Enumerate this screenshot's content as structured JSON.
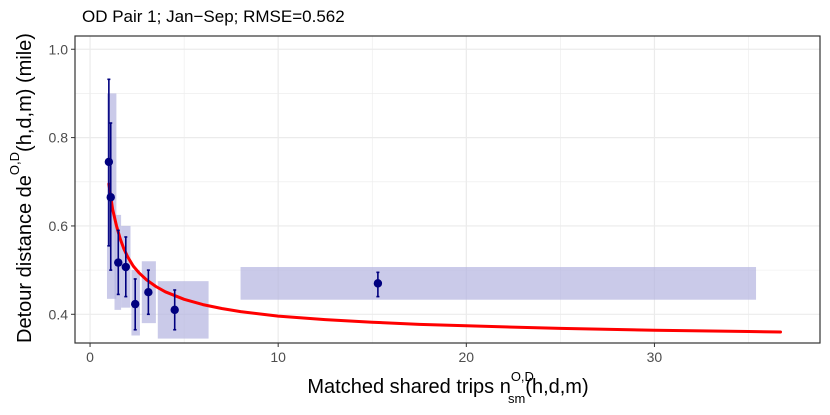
{
  "chart_data": {
    "type": "scatter",
    "title": "OD Pair 1; Jan−Sep; RMSE=0.562",
    "xlabel": {
      "text": "Matched shared trips n",
      "sub": "sm",
      "sup": "O,D",
      "suffix": "(h,d,m)"
    },
    "ylabel": {
      "text": "Detour distance de",
      "sup": "O,D",
      "suffix": "(h,d,m) (mile)"
    },
    "xlim": [
      -0.8,
      38.8
    ],
    "ylim": [
      0.335,
      1.03
    ],
    "x_ticks": [
      0,
      10,
      20,
      30
    ],
    "y_ticks": [
      0.4,
      0.6,
      0.8,
      1.0
    ],
    "x_tick_labels": [
      "0",
      "10",
      "20",
      "30"
    ],
    "y_tick_labels": [
      "0.4",
      "0.6",
      "0.8",
      "1.0"
    ],
    "grid": true,
    "colors": {
      "points": "#00007f",
      "boxes": "#b3b3e0",
      "fit": "#ff0000",
      "grid": "#ebebeb",
      "panel_border": "#333333"
    },
    "points": [
      {
        "x": 1.0,
        "y": 0.745,
        "ylo": 0.555,
        "yhi": 0.932
      },
      {
        "x": 1.1,
        "y": 0.665,
        "ylo": 0.5,
        "yhi": 0.833
      },
      {
        "x": 1.5,
        "y": 0.517,
        "ylo": 0.445,
        "yhi": 0.59
      },
      {
        "x": 1.9,
        "y": 0.507,
        "ylo": 0.44,
        "yhi": 0.575
      },
      {
        "x": 2.4,
        "y": 0.423,
        "ylo": 0.365,
        "yhi": 0.48
      },
      {
        "x": 3.1,
        "y": 0.45,
        "ylo": 0.4,
        "yhi": 0.5
      },
      {
        "x": 4.5,
        "y": 0.41,
        "ylo": 0.365,
        "yhi": 0.455
      },
      {
        "x": 15.3,
        "y": 0.47,
        "ylo": 0.44,
        "yhi": 0.495
      }
    ],
    "boxes": [
      {
        "x0": 0.9,
        "x1": 1.4,
        "y0": 0.435,
        "y1": 0.9
      },
      {
        "x0": 1.3,
        "x1": 1.65,
        "y0": 0.41,
        "y1": 0.625
      },
      {
        "x0": 1.65,
        "x1": 2.15,
        "y0": 0.415,
        "y1": 0.6
      },
      {
        "x0": 2.2,
        "x1": 2.65,
        "y0": 0.352,
        "y1": 0.5
      },
      {
        "x0": 2.75,
        "x1": 3.5,
        "y0": 0.38,
        "y1": 0.52
      },
      {
        "x0": 3.6,
        "x1": 6.3,
        "y0": 0.345,
        "y1": 0.475
      },
      {
        "x0": 8.0,
        "x1": 35.4,
        "y0": 0.433,
        "y1": 0.507
      }
    ],
    "fit_curve": {
      "x": [
        1.0,
        1.2,
        1.4,
        1.6,
        1.8,
        2.0,
        2.3,
        2.6,
        3.0,
        3.5,
        4.0,
        5.0,
        6.0,
        7.0,
        8.0,
        10.0,
        12.5,
        15.0,
        17.5,
        20.0,
        25.0,
        30.0,
        35.0,
        36.7
      ],
      "y": [
        0.695,
        0.638,
        0.601,
        0.571,
        0.548,
        0.53,
        0.509,
        0.494,
        0.478,
        0.463,
        0.451,
        0.434,
        0.422,
        0.413,
        0.406,
        0.396,
        0.388,
        0.382,
        0.377,
        0.374,
        0.368,
        0.364,
        0.361,
        0.36
      ]
    }
  }
}
